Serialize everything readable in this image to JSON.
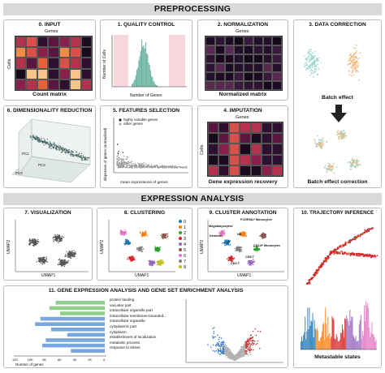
{
  "sections": {
    "preprocessing": "PREPROCESSING",
    "expression": "EXPRESSION ANALYSIS"
  },
  "panels": {
    "input": {
      "title": "0. INPUT",
      "genes": "Genes",
      "cells": "Cells",
      "caption": "Count matrix"
    },
    "qc": {
      "title": "1. QUALITY CONTROL",
      "ylabel": "Number of Cells",
      "xlabel": "Number of Genes"
    },
    "normalization": {
      "title": "2. NORMALIZATION",
      "genes": "Genes",
      "caption": "Normalized matrix"
    },
    "correction": {
      "title": "3. DATA CORRECTION",
      "top_caption": "Batch effect",
      "bottom_caption": "Batch effect correction"
    },
    "dimred": {
      "title": "6. DIMENSIONALITY REDUCTION",
      "pc1": "PC1",
      "pc2": "PC2",
      "pc3": "PC3"
    },
    "features": {
      "title": "5. FEATURES SELECTION",
      "legend": [
        "highly variable genes",
        "other genes"
      ],
      "ylabel": "dispersion of genes (normalized)",
      "xlabel": "mean expressions of genes"
    },
    "imputation": {
      "title": "4. IMPUTATION",
      "genes": "Genes",
      "cells": "Cells",
      "caption": "Gene expression recovery"
    },
    "visualization": {
      "title": "7. VISUALIZATION",
      "x": "UMAP1",
      "y": "UMAP2"
    },
    "clustering": {
      "title": "8. CLUSTERING",
      "x": "UMAP1",
      "y": "UMAP2",
      "clusters": [
        "0",
        "1",
        "2",
        "3",
        "4",
        "5",
        "6",
        "7",
        "8"
      ]
    },
    "annotation": {
      "title": "9. CLUSTER ANNOTATION",
      "x": "UMAP1",
      "y": "UMAP2",
      "labels": [
        "FCGR3A+ Monocytes",
        "Megakaryocytes",
        "Dendritic",
        "CD14+ Monocytes",
        "NK",
        "B",
        "CD8 T",
        "CD4 T"
      ]
    },
    "trajectory": {
      "title": "10. TRAJECTORY INFERENCE",
      "caption": "Metastable states"
    },
    "enrichment": {
      "title": "11. GENE EXPRESSION ANALYSIS AND GENE SET ENRICHMENT ANALYSIS",
      "terms": [
        "protein binding",
        "vacuolar part",
        "intracellular organelle part",
        "intracellular membrane-bounded...",
        "intracellular organelle",
        "cytoplasmic part",
        "cytoplasm",
        "establishment of localization",
        "metabolic process",
        "response to stress"
      ],
      "xaxis_ticks": [
        "12K",
        "10K",
        "8K",
        "6K",
        "4K",
        "2K",
        "0"
      ],
      "xlabel": "Number of genes"
    }
  },
  "colors": {
    "banner": "#d9d9d9",
    "heat_dark": "#1a0a1e",
    "heat_mid": "#8a1f4b",
    "heat_bright": "#e8603a",
    "green_bar": "#8fd18a",
    "blue_bar": "#7aa6e0",
    "cluster_colors": [
      "#1f77b4",
      "#ff7f0e",
      "#2ca02c",
      "#d62728",
      "#9467bd",
      "#8c564b",
      "#e377c2",
      "#7f7f7f",
      "#bcbd22"
    ]
  }
}
